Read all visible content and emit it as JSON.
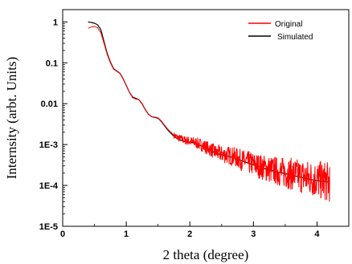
{
  "chart_data": {
    "type": "line",
    "xlabel": "2 theta (degree)",
    "ylabel": "Internsity (arbt. Units)",
    "xlim": [
      0,
      4.5
    ],
    "ylim": [
      1e-05,
      2
    ],
    "yscale": "log",
    "x_ticks": [
      0,
      1,
      2,
      3,
      4
    ],
    "x_tick_labels": [
      "0",
      "1",
      "2",
      "3",
      "4"
    ],
    "y_ticks": [
      1,
      0.1,
      0.01,
      0.001,
      0.0001,
      1e-05
    ],
    "y_tick_labels": [
      "1",
      "0.1",
      "0.01",
      "1E-3",
      "1E-4",
      "1E-5"
    ],
    "legend_position": "top-right",
    "series": [
      {
        "name": "Original",
        "color": "#ff0000",
        "noisy": true,
        "x": [
          0.4,
          0.45,
          0.5,
          0.55,
          0.6,
          0.65,
          0.7,
          0.75,
          0.8,
          0.85,
          0.9,
          0.95,
          1.0,
          1.05,
          1.1,
          1.15,
          1.2,
          1.25,
          1.3,
          1.35,
          1.4,
          1.45,
          1.5,
          1.55,
          1.6,
          1.65,
          1.7,
          1.75,
          1.8,
          1.9,
          2.0,
          2.1,
          2.2,
          2.3,
          2.4,
          2.5,
          2.6,
          2.7,
          2.8,
          2.9,
          3.0,
          3.2,
          3.4,
          3.6,
          3.8,
          4.0,
          4.2
        ],
        "y": [
          0.7,
          0.75,
          0.78,
          0.72,
          0.55,
          0.3,
          0.16,
          0.1,
          0.07,
          0.062,
          0.055,
          0.04,
          0.028,
          0.019,
          0.014,
          0.013,
          0.0125,
          0.01,
          0.0072,
          0.0055,
          0.0048,
          0.0047,
          0.0045,
          0.0038,
          0.003,
          0.0024,
          0.002,
          0.0017,
          0.0015,
          0.0013,
          0.0012,
          0.0011,
          0.00095,
          0.0008,
          0.00065,
          0.00058,
          0.00055,
          0.0005,
          0.00043,
          0.00037,
          0.00033,
          0.00026,
          0.00022,
          0.00019,
          0.00016,
          0.00014,
          0.00012
        ]
      },
      {
        "name": "Simulated",
        "color": "#000000",
        "noisy": false,
        "x": [
          0.4,
          0.45,
          0.5,
          0.55,
          0.6,
          0.65,
          0.7,
          0.75,
          0.8,
          0.85,
          0.9,
          0.95,
          1.0,
          1.05,
          1.1,
          1.15,
          1.2,
          1.25,
          1.3,
          1.35,
          1.4,
          1.45,
          1.5,
          1.55,
          1.6,
          1.65,
          1.7,
          1.75,
          1.8,
          1.9,
          2.0,
          2.1,
          2.2,
          2.3,
          2.4,
          2.5,
          2.6,
          2.7,
          2.8,
          2.9,
          3.0,
          3.2,
          3.4,
          3.6,
          3.8,
          4.0,
          4.2
        ],
        "y": [
          1.0,
          0.97,
          0.93,
          0.85,
          0.65,
          0.33,
          0.17,
          0.105,
          0.072,
          0.063,
          0.056,
          0.041,
          0.028,
          0.019,
          0.0145,
          0.0135,
          0.0125,
          0.0098,
          0.0071,
          0.0055,
          0.0048,
          0.0046,
          0.0044,
          0.0037,
          0.0029,
          0.0023,
          0.0019,
          0.0016,
          0.0014,
          0.0012,
          0.00115,
          0.00105,
          0.0009,
          0.00075,
          0.00062,
          0.00056,
          0.00052,
          0.00047,
          0.00041,
          0.00036,
          0.00032,
          0.00025,
          0.00021,
          0.00018,
          0.00015,
          0.00013,
          0.00012
        ]
      }
    ]
  }
}
